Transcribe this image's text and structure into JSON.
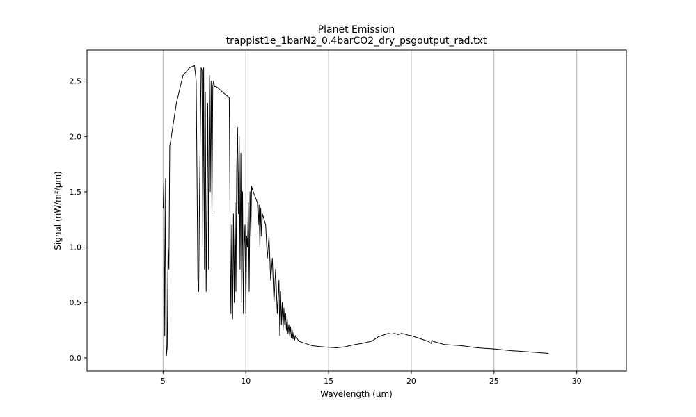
{
  "chart_data": {
    "type": "line",
    "title": "Planet Emission",
    "subtitle": "trappist1e_1barN2_0.4barCO2_dry_psgoutput_rad.txt",
    "xlabel": "Wavelength (μm)",
    "ylabel": "Signal (nW/m²/μm)",
    "xlim": [
      0.4,
      33.0
    ],
    "ylim": [
      -0.12,
      2.78
    ],
    "xticks": [
      5,
      10,
      15,
      20,
      25,
      30
    ],
    "xtick_labels": [
      "5",
      "10",
      "15",
      "20",
      "25",
      "30"
    ],
    "yticks": [
      0.0,
      0.5,
      1.0,
      1.5,
      2.0,
      2.5
    ],
    "ytick_labels": [
      "0.0",
      "0.5",
      "1.0",
      "1.5",
      "2.0",
      "2.5"
    ],
    "grid": "vertical",
    "line_color": "#000000",
    "grid_color": "#b0b0b0",
    "series": [
      {
        "x": [
          5.0,
          5.05,
          5.1,
          5.15,
          5.2,
          5.25,
          5.3,
          5.35,
          5.4,
          5.45,
          5.5,
          5.8,
          6.2,
          6.6,
          6.9,
          7.0,
          7.1,
          7.15,
          7.2,
          7.3,
          7.35,
          7.4,
          7.45,
          7.5,
          7.55,
          7.6,
          7.7,
          7.75,
          7.8,
          7.85,
          7.9,
          7.95,
          8.0,
          8.05,
          8.1,
          8.2,
          8.3,
          8.6,
          9.0,
          9.05,
          9.1,
          9.15,
          9.2,
          9.25,
          9.3,
          9.35,
          9.4,
          9.45,
          9.5,
          9.55,
          9.6,
          9.65,
          9.7,
          9.75,
          9.8,
          9.85,
          9.9,
          9.95,
          10.0,
          10.05,
          10.1,
          10.15,
          10.2,
          10.25,
          10.3,
          10.35,
          10.4,
          10.45,
          10.5,
          10.55,
          10.6,
          10.65,
          10.7,
          10.75,
          10.8,
          10.85,
          10.9,
          10.95,
          11.0,
          11.1,
          11.2,
          11.3,
          11.4,
          11.5,
          11.6,
          11.7,
          11.8,
          11.9,
          12.0,
          12.05,
          12.1,
          12.15,
          12.2,
          12.25,
          12.3,
          12.35,
          12.4,
          12.45,
          12.5,
          12.55,
          12.6,
          12.65,
          12.7,
          12.75,
          12.8,
          12.85,
          12.9,
          12.95,
          13.0,
          13.2,
          13.4,
          13.6,
          13.8,
          14.0,
          14.3,
          14.6,
          15.0,
          15.5,
          16.0,
          16.3,
          16.6,
          17.0,
          17.3,
          17.6,
          17.8,
          18.0,
          18.2,
          18.4,
          18.6,
          18.8,
          19.0,
          19.2,
          19.4,
          19.6,
          19.8,
          20.0,
          21.0,
          21.2,
          21.25,
          21.3,
          22.0,
          23.0,
          24.0,
          25.0,
          26.0,
          27.0,
          28.3
        ],
        "y": [
          1.35,
          1.6,
          0.2,
          1.62,
          0.02,
          0.1,
          1.0,
          0.8,
          1.92,
          1.95,
          2.0,
          2.3,
          2.55,
          2.62,
          2.64,
          2.5,
          0.7,
          0.6,
          1.5,
          2.62,
          2.6,
          1.0,
          2.62,
          0.8,
          2.4,
          0.6,
          2.3,
          0.8,
          2.55,
          1.5,
          2.5,
          1.3,
          2.45,
          2.5,
          2.45,
          2.45,
          2.44,
          2.4,
          2.35,
          1.2,
          0.4,
          1.2,
          0.35,
          1.3,
          0.5,
          1.4,
          0.6,
          1.7,
          2.08,
          1.3,
          2.0,
          0.8,
          1.85,
          0.5,
          1.5,
          0.4,
          1.0,
          1.2,
          0.4,
          1.1,
          1.0,
          1.4,
          0.6,
          1.5,
          1.1,
          1.55,
          1.52,
          1.5,
          1.48,
          1.46,
          1.44,
          1.42,
          1.4,
          1.2,
          1.38,
          1.0,
          1.35,
          1.1,
          1.3,
          1.25,
          1.2,
          0.9,
          1.1,
          0.7,
          0.9,
          0.5,
          0.8,
          0.4,
          0.7,
          0.2,
          0.6,
          0.3,
          0.5,
          0.25,
          0.45,
          0.3,
          0.4,
          0.25,
          0.35,
          0.22,
          0.3,
          0.2,
          0.28,
          0.18,
          0.25,
          0.17,
          0.23,
          0.16,
          0.2,
          0.15,
          0.14,
          0.13,
          0.12,
          0.11,
          0.105,
          0.1,
          0.095,
          0.09,
          0.1,
          0.11,
          0.12,
          0.13,
          0.14,
          0.15,
          0.17,
          0.19,
          0.2,
          0.21,
          0.22,
          0.215,
          0.22,
          0.21,
          0.22,
          0.215,
          0.205,
          0.2,
          0.15,
          0.13,
          0.16,
          0.15,
          0.12,
          0.11,
          0.09,
          0.08,
          0.065,
          0.055,
          0.04
        ]
      }
    ]
  }
}
